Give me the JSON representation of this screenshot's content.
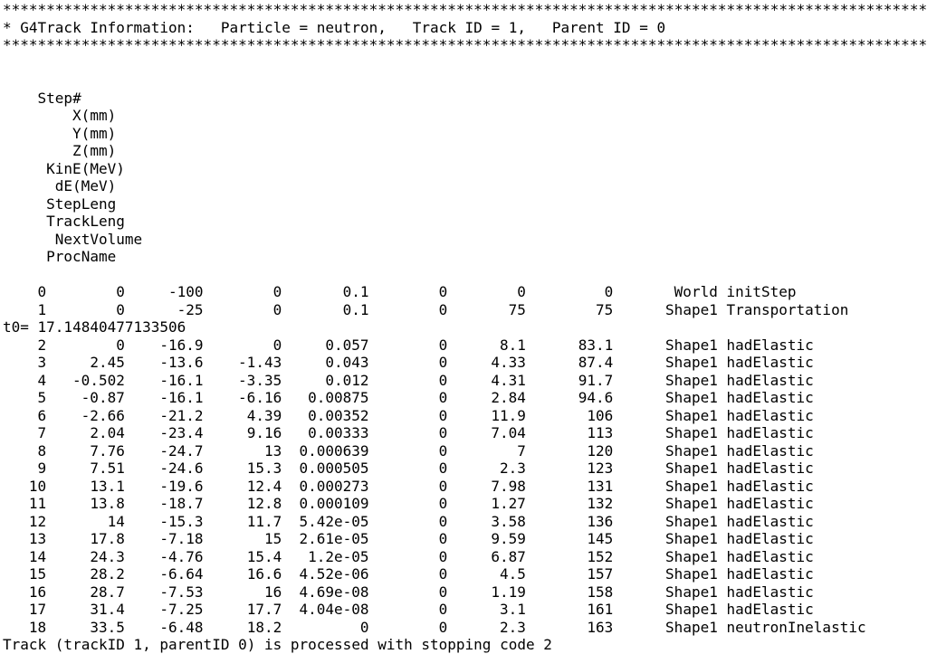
{
  "console": {
    "banner": "**********************************************************************************************************",
    "title_line": "* G4Track Information:   Particle = neutron,   Track ID = 1,   Parent ID = 0",
    "footer_line": "Track (trackID 1, parentID 0) is processed with stopping code 2",
    "columns": {
      "step": "Step#",
      "x": "X(mm)",
      "y": "Y(mm)",
      "z": "Z(mm)",
      "kinE": "KinE(MeV)",
      "dE": "dE(MeV)",
      "stepLeng": "StepLeng",
      "trackLeng": "TrackLeng",
      "nextVolume": "NextVolume",
      "procName": "ProcName"
    },
    "rows": [
      {
        "step": "0",
        "x": "0",
        "y": "-100",
        "z": "0",
        "kinE": "0.1",
        "dE": "0",
        "stepLeng": "0",
        "trackLeng": "0",
        "nextVolume": "World",
        "procName": "initStep"
      },
      {
        "step": "1",
        "x": "0",
        "y": "-25",
        "z": "0",
        "kinE": "0.1",
        "dE": "0",
        "stepLeng": "75",
        "trackLeng": "75",
        "nextVolume": "Shape1",
        "procName": "Transportation"
      },
      {
        "raw": "t0= 17.14840477133506"
      },
      {
        "step": "2",
        "x": "0",
        "y": "-16.9",
        "z": "0",
        "kinE": "0.057",
        "dE": "0",
        "stepLeng": "8.1",
        "trackLeng": "83.1",
        "nextVolume": "Shape1",
        "procName": "hadElastic"
      },
      {
        "step": "3",
        "x": "2.45",
        "y": "-13.6",
        "z": "-1.43",
        "kinE": "0.043",
        "dE": "0",
        "stepLeng": "4.33",
        "trackLeng": "87.4",
        "nextVolume": "Shape1",
        "procName": "hadElastic"
      },
      {
        "step": "4",
        "x": "-0.502",
        "y": "-16.1",
        "z": "-3.35",
        "kinE": "0.012",
        "dE": "0",
        "stepLeng": "4.31",
        "trackLeng": "91.7",
        "nextVolume": "Shape1",
        "procName": "hadElastic"
      },
      {
        "step": "5",
        "x": "-0.87",
        "y": "-16.1",
        "z": "-6.16",
        "kinE": "0.00875",
        "dE": "0",
        "stepLeng": "2.84",
        "trackLeng": "94.6",
        "nextVolume": "Shape1",
        "procName": "hadElastic"
      },
      {
        "step": "6",
        "x": "-2.66",
        "y": "-21.2",
        "z": "4.39",
        "kinE": "0.00352",
        "dE": "0",
        "stepLeng": "11.9",
        "trackLeng": "106",
        "nextVolume": "Shape1",
        "procName": "hadElastic"
      },
      {
        "step": "7",
        "x": "2.04",
        "y": "-23.4",
        "z": "9.16",
        "kinE": "0.00333",
        "dE": "0",
        "stepLeng": "7.04",
        "trackLeng": "113",
        "nextVolume": "Shape1",
        "procName": "hadElastic"
      },
      {
        "step": "8",
        "x": "7.76",
        "y": "-24.7",
        "z": "13",
        "kinE": "0.000639",
        "dE": "0",
        "stepLeng": "7",
        "trackLeng": "120",
        "nextVolume": "Shape1",
        "procName": "hadElastic"
      },
      {
        "step": "9",
        "x": "7.51",
        "y": "-24.6",
        "z": "15.3",
        "kinE": "0.000505",
        "dE": "0",
        "stepLeng": "2.3",
        "trackLeng": "123",
        "nextVolume": "Shape1",
        "procName": "hadElastic"
      },
      {
        "step": "10",
        "x": "13.1",
        "y": "-19.6",
        "z": "12.4",
        "kinE": "0.000273",
        "dE": "0",
        "stepLeng": "7.98",
        "trackLeng": "131",
        "nextVolume": "Shape1",
        "procName": "hadElastic"
      },
      {
        "step": "11",
        "x": "13.8",
        "y": "-18.7",
        "z": "12.8",
        "kinE": "0.000109",
        "dE": "0",
        "stepLeng": "1.27",
        "trackLeng": "132",
        "nextVolume": "Shape1",
        "procName": "hadElastic"
      },
      {
        "step": "12",
        "x": "14",
        "y": "-15.3",
        "z": "11.7",
        "kinE": "5.42e-05",
        "dE": "0",
        "stepLeng": "3.58",
        "trackLeng": "136",
        "nextVolume": "Shape1",
        "procName": "hadElastic"
      },
      {
        "step": "13",
        "x": "17.8",
        "y": "-7.18",
        "z": "15",
        "kinE": "2.61e-05",
        "dE": "0",
        "stepLeng": "9.59",
        "trackLeng": "145",
        "nextVolume": "Shape1",
        "procName": "hadElastic"
      },
      {
        "step": "14",
        "x": "24.3",
        "y": "-4.76",
        "z": "15.4",
        "kinE": "1.2e-05",
        "dE": "0",
        "stepLeng": "6.87",
        "trackLeng": "152",
        "nextVolume": "Shape1",
        "procName": "hadElastic"
      },
      {
        "step": "15",
        "x": "28.2",
        "y": "-6.64",
        "z": "16.6",
        "kinE": "4.52e-06",
        "dE": "0",
        "stepLeng": "4.5",
        "trackLeng": "157",
        "nextVolume": "Shape1",
        "procName": "hadElastic"
      },
      {
        "step": "16",
        "x": "28.7",
        "y": "-7.53",
        "z": "16",
        "kinE": "4.69e-08",
        "dE": "0",
        "stepLeng": "1.19",
        "trackLeng": "158",
        "nextVolume": "Shape1",
        "procName": "hadElastic"
      },
      {
        "step": "17",
        "x": "31.4",
        "y": "-7.25",
        "z": "17.7",
        "kinE": "4.04e-08",
        "dE": "0",
        "stepLeng": "3.1",
        "trackLeng": "161",
        "nextVolume": "Shape1",
        "procName": "hadElastic"
      },
      {
        "step": "18",
        "x": "33.5",
        "y": "-6.48",
        "z": "18.2",
        "kinE": "0",
        "dE": "0",
        "stepLeng": "2.3",
        "trackLeng": "163",
        "nextVolume": "Shape1",
        "procName": "neutronInelastic"
      }
    ]
  }
}
